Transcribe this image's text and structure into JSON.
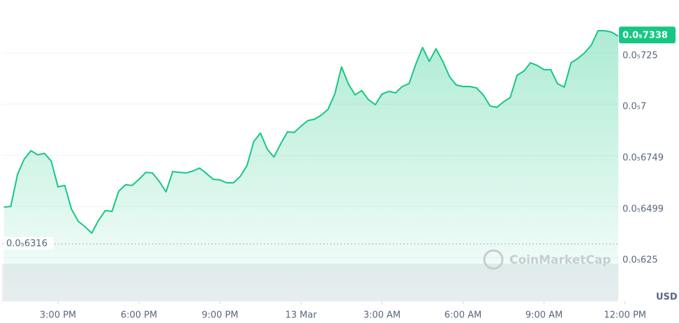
{
  "chart_data": {
    "type": "line",
    "color": "#16c784",
    "x": [
      1.0,
      1.25,
      1.5,
      1.75,
      2.0,
      2.25,
      2.5,
      2.75,
      3.0,
      3.25,
      3.5,
      3.75,
      4.0,
      4.25,
      4.5,
      4.75,
      5.0,
      5.25,
      5.5,
      5.75,
      6.0,
      6.25,
      6.5,
      6.75,
      7.0,
      7.25,
      7.5,
      7.75,
      8.0,
      8.25,
      8.5,
      8.75,
      9.0,
      9.25,
      9.5,
      9.75,
      10.0,
      10.25,
      10.5,
      10.75,
      11.0,
      11.25,
      11.5,
      11.75,
      12.0,
      12.25,
      12.5,
      12.75,
      13.0,
      13.25,
      13.5,
      13.75,
      14.0,
      14.25,
      14.5,
      14.75,
      15.0,
      15.25,
      15.5,
      15.75,
      16.0,
      16.25,
      16.5,
      16.75,
      17.0,
      17.25,
      17.5,
      17.75,
      18.0,
      18.25,
      18.5,
      18.75,
      19.0,
      19.25,
      19.5,
      19.75,
      20.0,
      20.25,
      20.5,
      20.75,
      21.0,
      21.25,
      21.5,
      21.75,
      22.0,
      22.25,
      22.5,
      22.75,
      23.0,
      23.25,
      23.5,
      23.75
    ],
    "values": [
      6.496e-06,
      6.499e-06,
      6.656e-06,
      6.731e-06,
      6.772e-06,
      6.752e-06,
      6.759e-06,
      6.721e-06,
      6.595e-06,
      6.602e-06,
      6.486e-06,
      6.427e-06,
      6.4e-06,
      6.369e-06,
      6.431e-06,
      6.479e-06,
      6.475e-06,
      6.574e-06,
      6.605e-06,
      6.602e-06,
      6.632e-06,
      6.666e-06,
      6.663e-06,
      6.622e-06,
      6.571e-06,
      6.67e-06,
      6.666e-06,
      6.663e-06,
      6.673e-06,
      6.687e-06,
      6.66e-06,
      6.632e-06,
      6.629e-06,
      6.615e-06,
      6.615e-06,
      6.646e-06,
      6.7e-06,
      6.817e-06,
      6.858e-06,
      6.779e-06,
      6.741e-06,
      6.806e-06,
      6.864e-06,
      6.861e-06,
      6.892e-06,
      6.919e-06,
      6.926e-06,
      6.946e-06,
      6.974e-06,
      7.049e-06,
      7.182e-06,
      7.1e-06,
      7.045e-06,
      7.066e-06,
      7.021e-06,
      6.997e-06,
      7.049e-06,
      7.062e-06,
      7.055e-06,
      7.086e-06,
      7.1e-06,
      7.195e-06,
      7.277e-06,
      7.209e-06,
      7.27e-06,
      7.209e-06,
      7.134e-06,
      7.093e-06,
      7.086e-06,
      7.086e-06,
      7.079e-06,
      7.045e-06,
      6.991e-06,
      6.984e-06,
      7.011e-06,
      7.032e-06,
      7.141e-06,
      7.161e-06,
      7.202e-06,
      7.189e-06,
      7.168e-06,
      7.168e-06,
      7.1e-06,
      7.083e-06,
      7.202e-06,
      7.223e-06,
      7.25e-06,
      7.288e-06,
      7.359e-06,
      7.359e-06,
      7.352e-06,
      7.332e-06
    ],
    "xlim": [
      0.93,
      23.75
    ],
    "xticks": [
      {
        "value": 3,
        "label": "3:00 PM"
      },
      {
        "value": 6,
        "label": "6:00 PM"
      },
      {
        "value": 9,
        "label": "9:00 PM"
      },
      {
        "value": 12,
        "label": "13 Mar"
      },
      {
        "value": 15,
        "label": "3:00 AM"
      },
      {
        "value": 18,
        "label": "6:00 AM"
      },
      {
        "value": 21,
        "label": "9:00 AM"
      },
      {
        "value": 24,
        "label": "12:00 PM"
      }
    ],
    "ylim": [
      6.035e-06,
      7.509e-06
    ],
    "yticks": [
      {
        "value": 6.25e-06,
        "label": "0.0₅625"
      },
      {
        "value": 6.499e-06,
        "label": "0.0₅6499"
      },
      {
        "value": 6.749e-06,
        "label": "0.0₅6749"
      },
      {
        "value": 7e-06,
        "label": "0.0₅7"
      },
      {
        "value": 7.25e-06,
        "label": "0.0₅725"
      }
    ],
    "grid": true,
    "current_price": {
      "value": 7.338e-06,
      "label": "0.0₅7338"
    },
    "low_price": {
      "value": 6.316e-06,
      "label": "0.0₅6316"
    },
    "currency": "USD",
    "watermark": "CoinMarketCap"
  }
}
